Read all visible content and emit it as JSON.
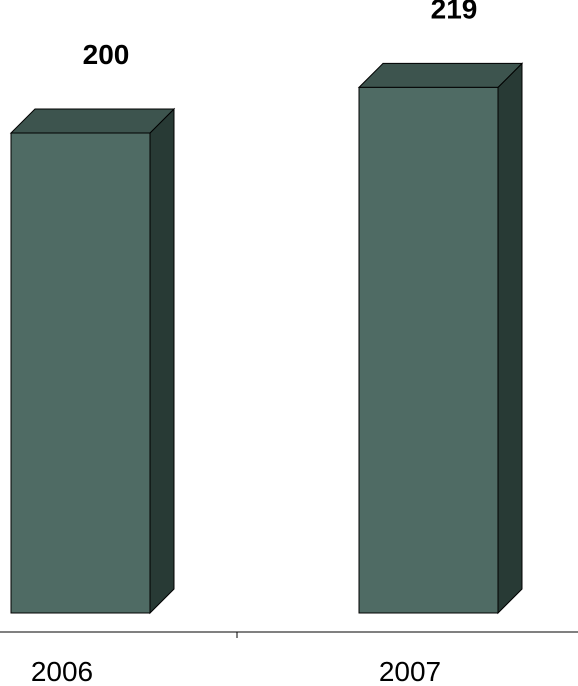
{
  "chart_data": {
    "type": "bar",
    "style": "3d-column",
    "categories": [
      "2006",
      "2007"
    ],
    "values": [
      200,
      219
    ],
    "data_labels": [
      "200",
      "219"
    ],
    "ylim": [
      0,
      219
    ],
    "grid": false,
    "legend": "none"
  },
  "colors": {
    "bar_front": "#4f6b64",
    "bar_top": "#3d544e",
    "bar_side": "#283a35",
    "axis": "#000000",
    "background": "#ffffff"
  }
}
